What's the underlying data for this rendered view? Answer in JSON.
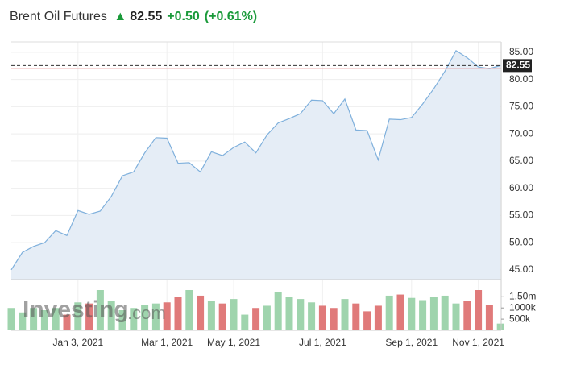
{
  "header": {
    "title": "Brent Oil Futures",
    "change": "+0.50",
    "change_percent": "(+0.61%)"
  },
  "chart_data": [
    {
      "type": "area",
      "color": "#7fb0dc",
      "fill": "#e5edf6",
      "last_price": 82.55,
      "previous_close": 82.05,
      "previous_close_color": "#e06666",
      "categories": [
        null,
        null,
        null,
        null,
        null,
        null,
        "Jan 3, 2021",
        null,
        null,
        null,
        null,
        null,
        null,
        null,
        "Mar 1, 2021",
        null,
        null,
        null,
        null,
        null,
        "May 1, 2021",
        null,
        null,
        null,
        null,
        null,
        null,
        null,
        "Jul 1, 2021",
        null,
        null,
        null,
        null,
        null,
        null,
        null,
        "Sep 1, 2021",
        null,
        null,
        null,
        null,
        null,
        "Nov 1, 2021",
        null,
        null
      ],
      "values": [
        45.0,
        48.2,
        49.3,
        50.0,
        52.2,
        51.3,
        55.9,
        55.2,
        55.8,
        58.5,
        62.3,
        63.0,
        66.5,
        69.3,
        69.2,
        64.6,
        64.7,
        63.0,
        66.7,
        66.0,
        67.5,
        68.5,
        66.5,
        69.8,
        72.0,
        72.8,
        73.7,
        76.2,
        76.1,
        73.7,
        76.4,
        70.7,
        70.6,
        65.2,
        72.7,
        72.6,
        73.0,
        75.5,
        78.3,
        81.5,
        85.3,
        84.0,
        82.3,
        82.0,
        82.55
      ],
      "ylim": [
        43.2,
        86.9
      ],
      "yticks": [
        {
          "value": 45,
          "label": "45.00"
        },
        {
          "value": 50,
          "label": "50.00"
        },
        {
          "value": 55,
          "label": "55.00"
        },
        {
          "value": 60,
          "label": "60.00"
        },
        {
          "value": 65,
          "label": "65.00"
        },
        {
          "value": 70,
          "label": "70.00"
        },
        {
          "value": 75,
          "label": "75.00"
        },
        {
          "value": 80,
          "label": "80.00"
        },
        {
          "value": 85,
          "label": "85.00"
        }
      ],
      "grid": true
    },
    {
      "type": "bar",
      "up_color": "#9fd4ad",
      "down_color": "#e07a7a",
      "watermark": [
        "Investing",
        ".com"
      ],
      "values": [
        1000000,
        800000,
        1000000,
        900000,
        1000000,
        700000,
        1250000,
        1200000,
        1800000,
        1300000,
        900000,
        1000000,
        1150000,
        1200000,
        1250000,
        1500000,
        1800000,
        1550000,
        1300000,
        1200000,
        1400000,
        700000,
        1000000,
        1100000,
        1700000,
        1500000,
        1400000,
        1250000,
        1100000,
        1000000,
        1400000,
        1200000,
        850000,
        1100000,
        1550000,
        1600000,
        1450000,
        1350000,
        1500000,
        1550000,
        1200000,
        1300000,
        1800000,
        1150000,
        300000
      ],
      "ylim": [
        0,
        2160000
      ],
      "yticks": [
        {
          "value": 500000,
          "label": "500k"
        },
        {
          "value": 1000000,
          "label": "1000k"
        },
        {
          "value": 1500000,
          "label": "1.50m"
        }
      ]
    }
  ]
}
